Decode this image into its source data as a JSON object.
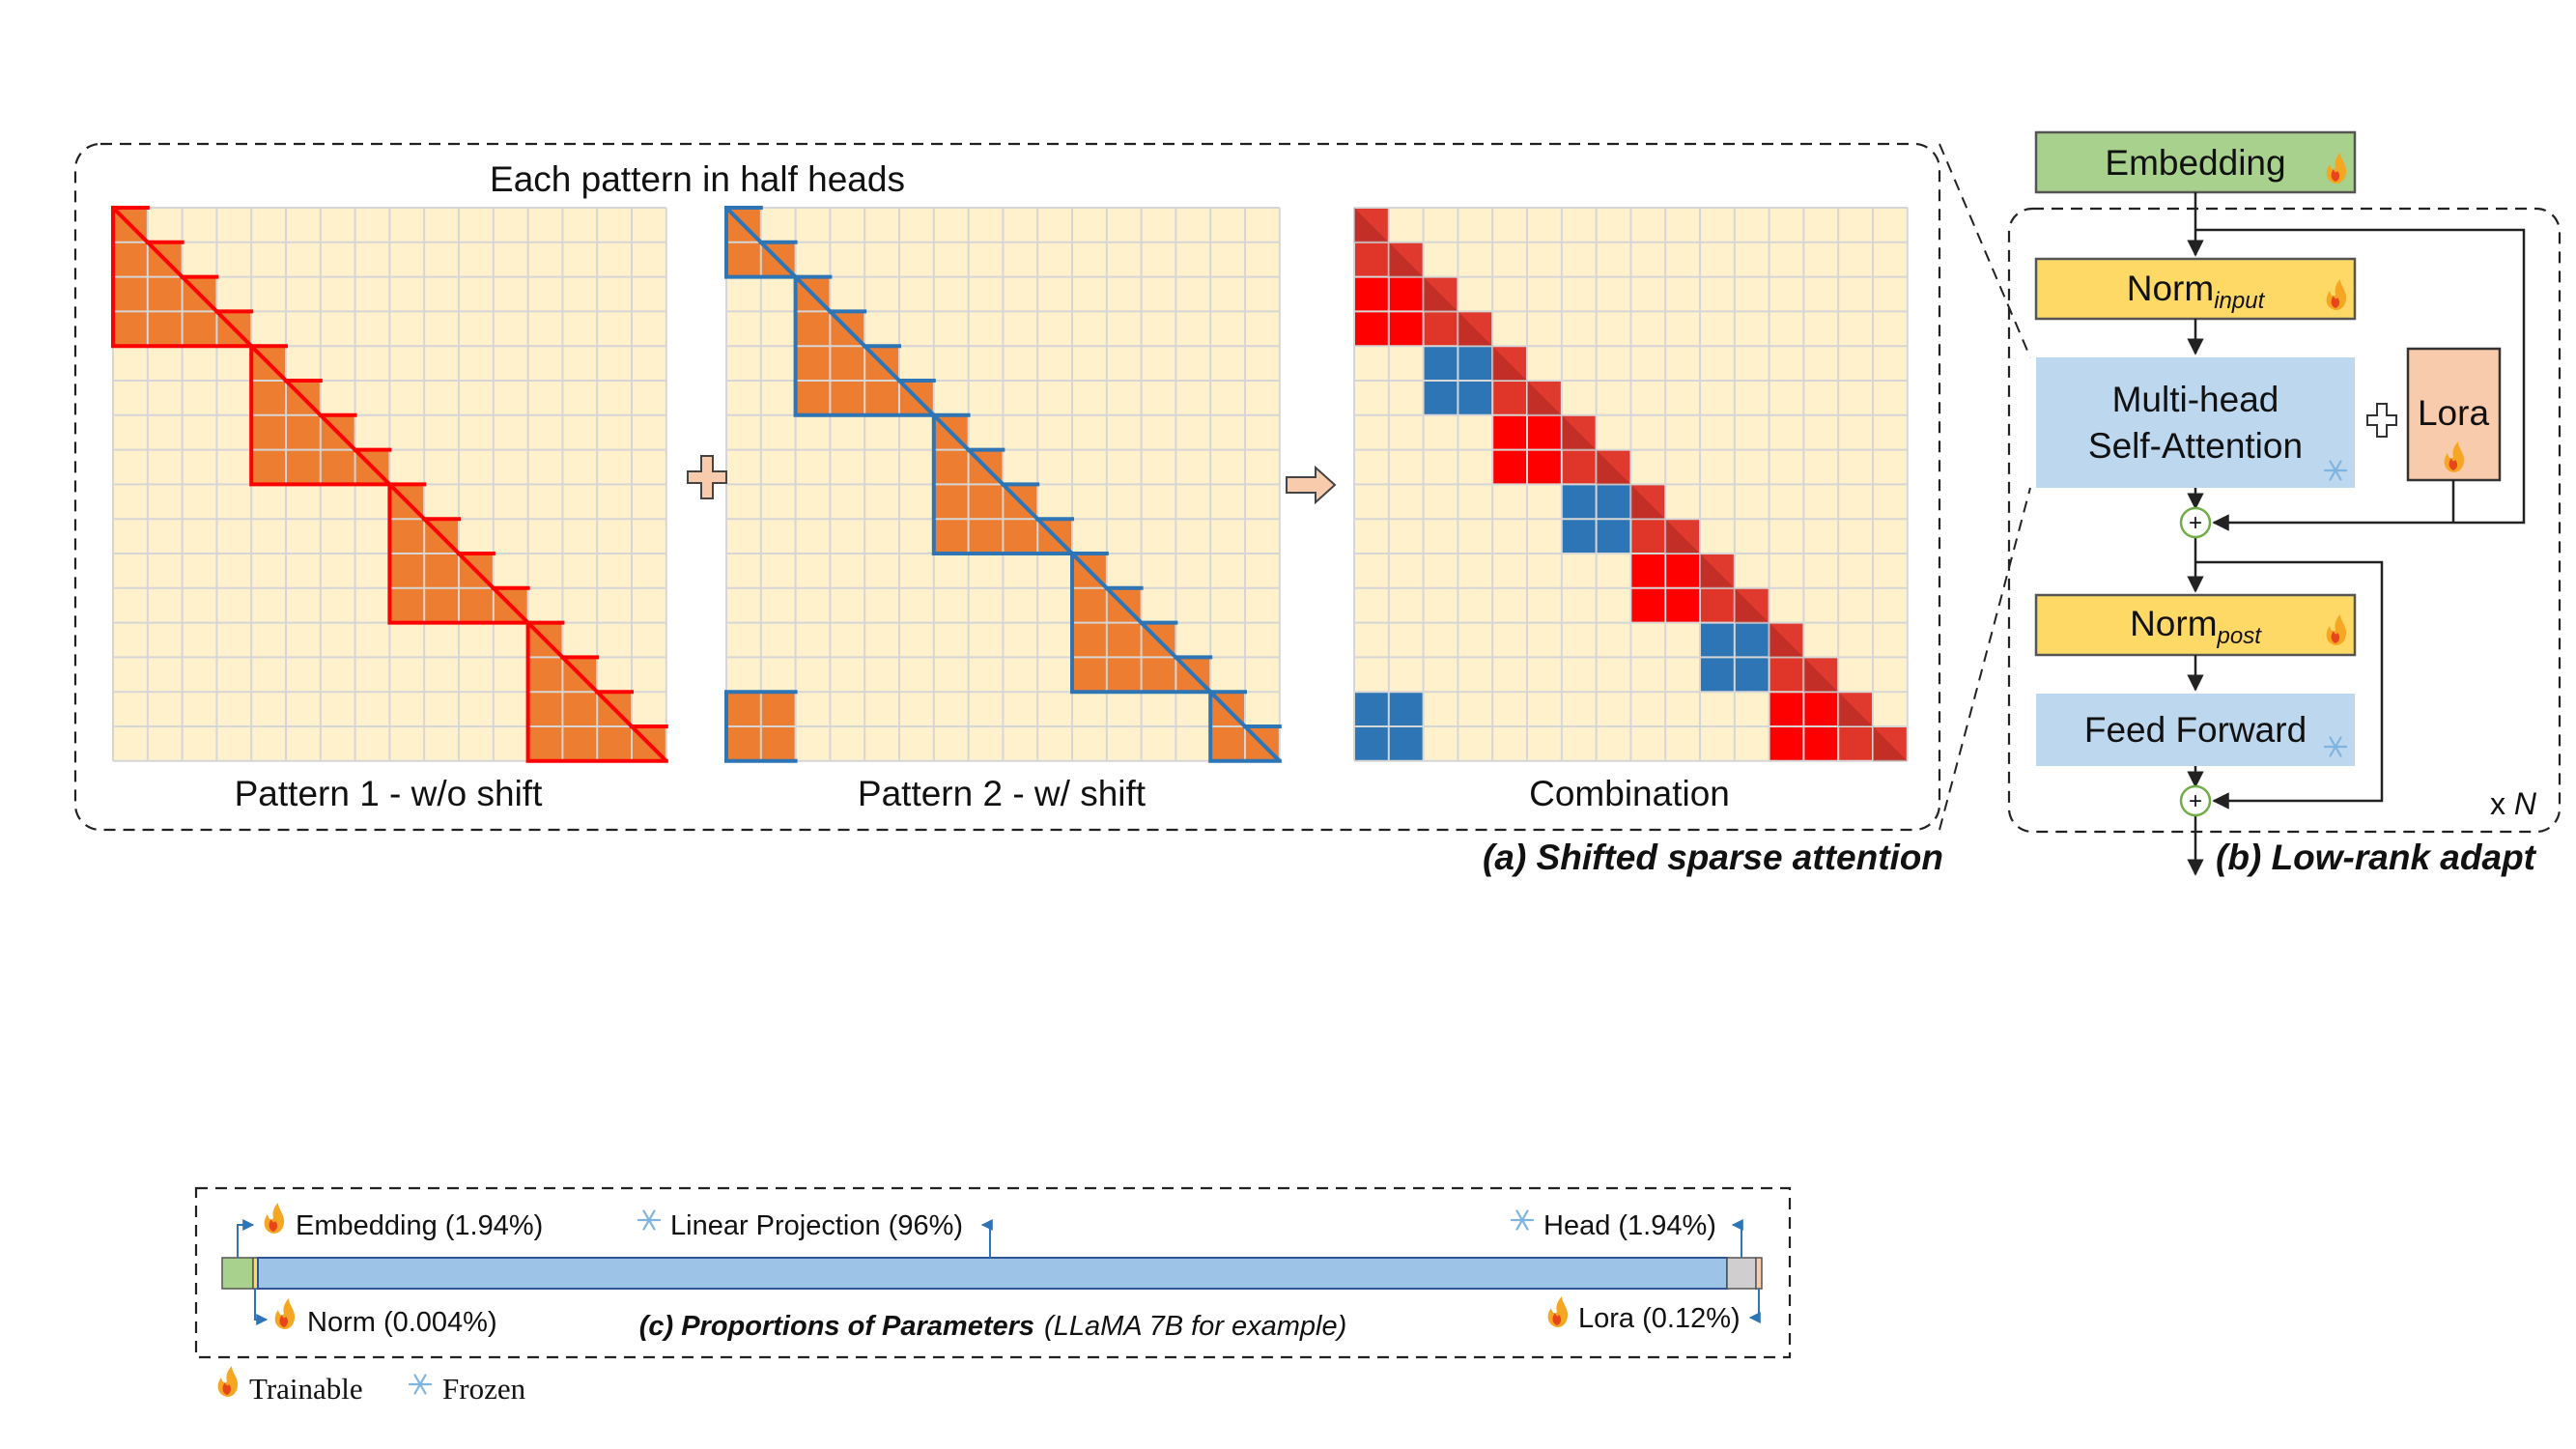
{
  "panel_a": {
    "title": "Each pattern in half heads",
    "pattern1_label": "Pattern 1 - w/o shift",
    "pattern2_label": "Pattern 2 - w/ shift",
    "combination_label": "Combination",
    "caption": "(a) Shifted sparse attention",
    "grid_size": 16,
    "group_size": 4,
    "shift": 2
  },
  "panel_b": {
    "embedding": "Embedding",
    "norm_input_main": "Norm",
    "norm_input_sub": "input",
    "attention_line1": "Multi-head",
    "attention_line2": "Self-Attention",
    "lora": "Lora",
    "norm_post_main": "Norm",
    "norm_post_sub": "post",
    "feed_forward": "Feed Forward",
    "repeat_main": "x ",
    "repeat_n": "N",
    "caption": "(b) Low-rank adapt"
  },
  "panel_c": {
    "embedding_label": "Embedding (1.94%)",
    "linear_label": "Linear Projection (96%)",
    "head_label": "Head (1.94%)",
    "norm_label": "Norm (0.004%)",
    "lora_label": "Lora (0.12%)",
    "caption_bold": "(c) Proportions of Parameters",
    "caption_normal": "(LLaMA 7B for example)",
    "proportions": {
      "embedding": 1.94,
      "norm": 0.004,
      "linear_projection": 96,
      "lora": 0.12,
      "head": 1.94
    }
  },
  "legend": {
    "trainable": "Trainable",
    "frozen": "Frozen"
  },
  "colors": {
    "grid_bg": "#FFF1CC",
    "grid_line": "#D6D6D6",
    "cell_orange": "#ED7D31",
    "red": "#FF0000",
    "blue": "#2E75B6",
    "embedding_fill": "#A9D18E",
    "norm_fill": "#FFD966",
    "attention_fill": "#BDD7EE",
    "lora_fill": "#F8CBAD",
    "linear_bar": "#9DC3E6",
    "head_bar": "#D0CECE",
    "plus_green": "#70AD47"
  }
}
